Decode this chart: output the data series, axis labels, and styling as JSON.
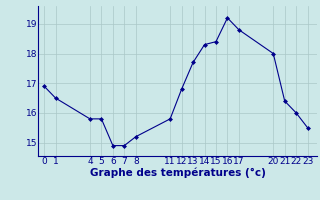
{
  "x": [
    0,
    1,
    4,
    5,
    6,
    7,
    8,
    11,
    12,
    13,
    14,
    15,
    16,
    17,
    20,
    21,
    22,
    23
  ],
  "y": [
    16.9,
    16.5,
    15.8,
    15.8,
    14.9,
    14.9,
    15.2,
    15.8,
    16.8,
    17.7,
    18.3,
    18.4,
    19.2,
    18.8,
    18.0,
    16.4,
    16.0,
    15.5
  ],
  "line_color": "#00008b",
  "marker_color": "#00008b",
  "bg_color": "#cce8e8",
  "grid_color": "#aac8c8",
  "xlabel": "Graphe des températures (°c)",
  "xlabel_color": "#00008b",
  "tick_color": "#00008b",
  "xticks": [
    0,
    1,
    4,
    5,
    6,
    7,
    8,
    11,
    12,
    13,
    14,
    15,
    16,
    17,
    20,
    21,
    22,
    23
  ],
  "yticks": [
    15,
    16,
    17,
    18,
    19
  ],
  "xlim": [
    -0.5,
    23.8
  ],
  "ylim": [
    14.55,
    19.6
  ],
  "tick_fontsize": 6.5,
  "xlabel_fontsize": 7.5
}
